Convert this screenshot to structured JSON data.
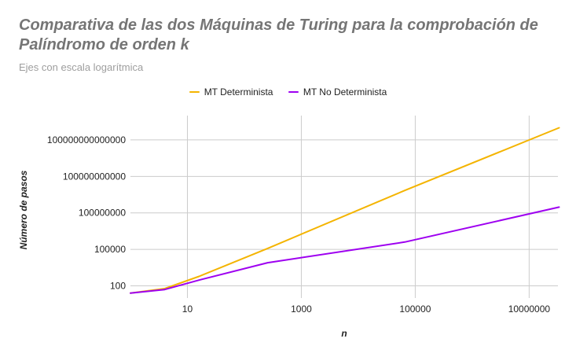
{
  "chart_data": {
    "type": "line",
    "title": "Comparativa de las dos Máquinas de Turing para la comprobación de Palíndromo de orden k",
    "subtitle": "Ejes con escala logarítmica",
    "xlabel": "n",
    "ylabel": "Número de pasos",
    "x_scale": "log",
    "y_scale": "log",
    "xlim": [
      1,
      32000000
    ],
    "ylim": [
      10,
      10000000000000000
    ],
    "x_ticks": [
      10,
      1000,
      100000,
      10000000
    ],
    "x_tick_labels": [
      "10",
      "1000",
      "100000",
      "10000000"
    ],
    "y_ticks": [
      100,
      100000,
      100000000,
      100000000000,
      100000000000000
    ],
    "y_tick_labels": [
      "100",
      "100000",
      "100000000",
      "100000000000",
      "100000000000000"
    ],
    "grid": true,
    "legend_position": "top",
    "series": [
      {
        "name": "MT Determinista",
        "color": "#f4b400",
        "x": [
          1,
          4,
          16,
          256,
          65536,
          33554432
        ],
        "y": [
          25,
          60,
          600,
          120000,
          7000000000,
          1000000000000000
        ]
      },
      {
        "name": "MT No Determinista",
        "color": "#9e00f0",
        "x": [
          1,
          4,
          16,
          256,
          65536,
          33554432
        ],
        "y": [
          25,
          50,
          300,
          8000,
          400000,
          300000000
        ]
      }
    ]
  }
}
